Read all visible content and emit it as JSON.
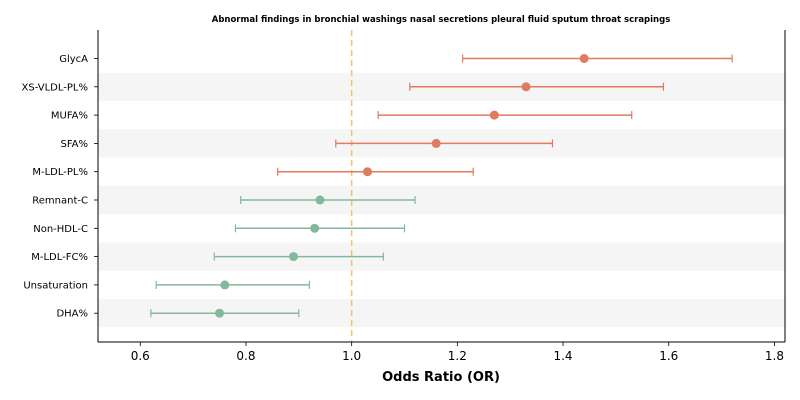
{
  "chart_data": {
    "type": "forest",
    "title": "Abnormal findings in bronchial washings nasal secretions pleural fluid sputum throat scrapings",
    "xlabel": "Odds Ratio (OR)",
    "ylabel": "",
    "xlim": [
      0.52,
      1.82
    ],
    "xticks": [
      "0.6",
      "0.8",
      "1.0",
      "1.2",
      "1.4",
      "1.6",
      "1.8"
    ],
    "reference_line": 1.0,
    "colors": {
      "positive": "#E07B5F",
      "negative": "#84B89C",
      "reference": "#F5C26B",
      "band": "#F5F5F5"
    },
    "rows": [
      {
        "label": "GlycA",
        "or": 1.44,
        "lo": 1.21,
        "hi": 1.72,
        "group": "positive"
      },
      {
        "label": "XS-VLDL-PL%",
        "or": 1.33,
        "lo": 1.11,
        "hi": 1.59,
        "group": "positive"
      },
      {
        "label": "MUFA%",
        "or": 1.27,
        "lo": 1.05,
        "hi": 1.53,
        "group": "positive"
      },
      {
        "label": "SFA%",
        "or": 1.16,
        "lo": 0.97,
        "hi": 1.38,
        "group": "positive"
      },
      {
        "label": "M-LDL-PL%",
        "or": 1.03,
        "lo": 0.86,
        "hi": 1.23,
        "group": "positive"
      },
      {
        "label": "Remnant-C",
        "or": 0.94,
        "lo": 0.79,
        "hi": 1.12,
        "group": "negative"
      },
      {
        "label": "Non-HDL-C",
        "or": 0.93,
        "lo": 0.78,
        "hi": 1.1,
        "group": "negative"
      },
      {
        "label": "M-LDL-FC%",
        "or": 0.89,
        "lo": 0.74,
        "hi": 1.06,
        "group": "negative"
      },
      {
        "label": "Unsaturation",
        "or": 0.76,
        "lo": 0.63,
        "hi": 0.92,
        "group": "negative"
      },
      {
        "label": "DHA%",
        "or": 0.75,
        "lo": 0.62,
        "hi": 0.9,
        "group": "negative"
      }
    ]
  }
}
